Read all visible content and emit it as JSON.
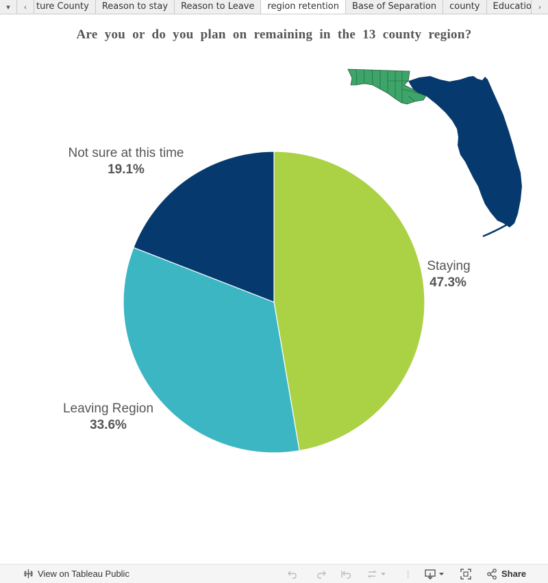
{
  "tabs": [
    {
      "label": "ture County",
      "active": false
    },
    {
      "label": "Reason to stay",
      "active": false
    },
    {
      "label": "Reason to Leave",
      "active": false
    },
    {
      "label": "region retention",
      "active": true
    },
    {
      "label": "Base of Separation",
      "active": false
    },
    {
      "label": "county",
      "active": false
    },
    {
      "label": "Education Pie",
      "active": false
    }
  ],
  "tabbar": {
    "menu_icon": "dropdown-icon",
    "prev_icon": "chevron-left-icon",
    "next_icon": "chevron-right-icon"
  },
  "chart_data": {
    "type": "pie",
    "title": "Are you or do you plan on remaining in the 13 county region?",
    "slices": [
      {
        "label": "Staying",
        "value_label": "47.3%",
        "value": 47.3,
        "color": "#abd144"
      },
      {
        "label": "Leaving Region",
        "value_label": "33.6%",
        "value": 33.6,
        "color": "#3db6c3"
      },
      {
        "label": "Not sure at this time",
        "value_label": "19.1%",
        "value": 19.1,
        "color": "#063a6e"
      }
    ],
    "start": "12 o'clock, clockwise",
    "inset": {
      "type": "map",
      "subject": "Florida",
      "highlight_color": "#3ea56a",
      "base_color": "#063a6e"
    }
  },
  "footer": {
    "view_label": "View on Tableau Public",
    "share_label": "Share",
    "icons": [
      "tableau-icon",
      "undo-icon",
      "redo-icon",
      "revert-icon",
      "refresh-icon",
      "download-icon",
      "fullscreen-icon",
      "share-icon"
    ]
  }
}
